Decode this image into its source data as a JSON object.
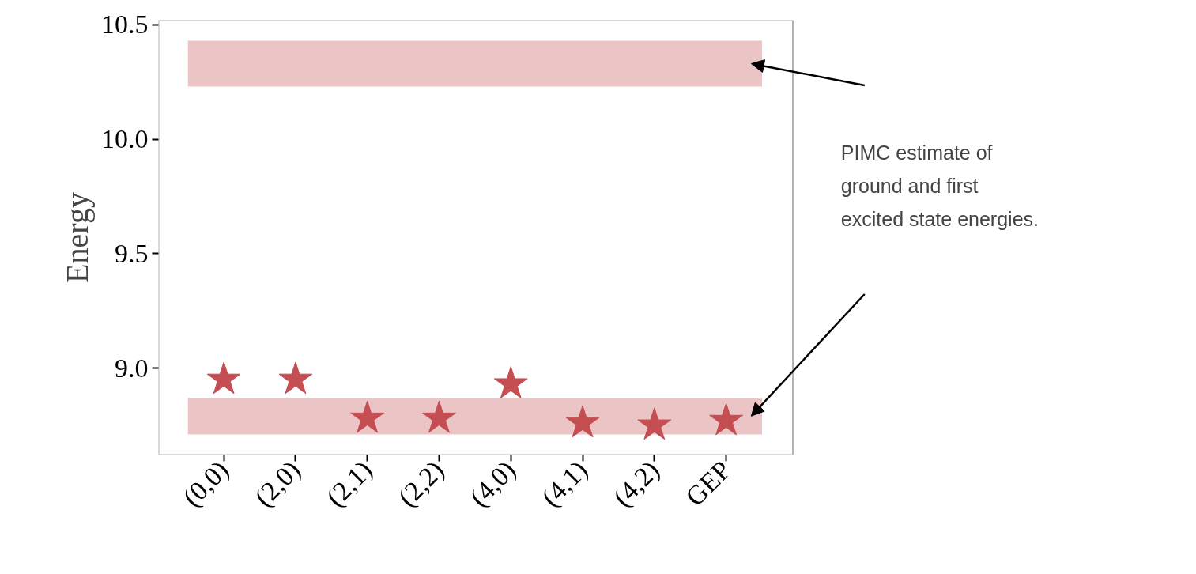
{
  "chart_data": {
    "type": "scatter",
    "ylabel": "Energy",
    "categories": [
      "(0,0)",
      "(2,0)",
      "(2,1)",
      "(2,2)",
      "(4,0)",
      "(4,1)",
      "(4,2)",
      "GEP"
    ],
    "series": [
      {
        "color": "#c44e52",
        "values": [
          8.95,
          8.95,
          8.78,
          8.78,
          8.93,
          8.76,
          8.75,
          8.77
        ]
      }
    ],
    "marker": "star",
    "ylim": [
      8.62,
      10.52
    ],
    "yticks": [
      {
        "value": 9,
        "label": "9.0"
      },
      {
        "value": 9.5,
        "label": "9.5"
      },
      {
        "value": 10,
        "label": "10.0"
      },
      {
        "value": 10.5,
        "label": "10.5"
      }
    ],
    "bands": [
      {
        "axis": "y",
        "from": 10.23,
        "to": 10.43,
        "color": "#ebc4c5"
      },
      {
        "axis": "y",
        "from": 8.71,
        "to": 8.87,
        "color": "#ebc4c5"
      }
    ],
    "annotations": [
      "PIMC estimate of\nground and first\nexcited state energies."
    ],
    "grid": false
  }
}
